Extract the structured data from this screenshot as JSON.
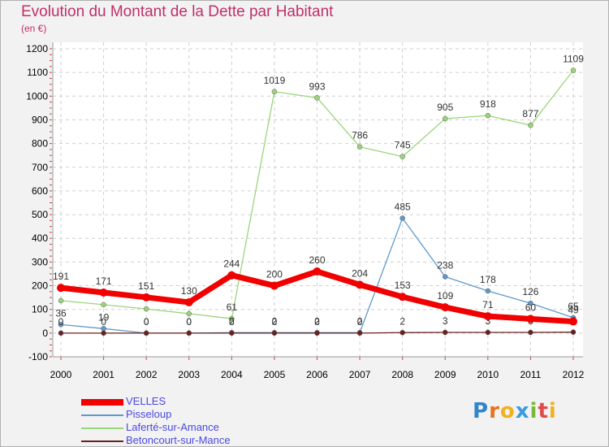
{
  "header": {
    "title": "Evolution du Montant de la Dette par Habitant",
    "subtitle": "(en €)"
  },
  "logo": {
    "text": "Proxiti",
    "letters": [
      "P",
      "r",
      "o",
      "x",
      "i",
      "t",
      "i"
    ],
    "colors": [
      "#2f86c9",
      "#e8731f",
      "#f0b020",
      "#3a9be0",
      "#7ab83b",
      "#e04a4a",
      "#f0b020"
    ]
  },
  "chart_data": {
    "type": "line",
    "x": [
      "2000",
      "2001",
      "2002",
      "2003",
      "2004",
      "2005",
      "2006",
      "2007",
      "2008",
      "2009",
      "2010",
      "2011",
      "2012"
    ],
    "ylim": [
      -100,
      1200
    ],
    "yticks": [
      -100,
      0,
      100,
      200,
      300,
      400,
      500,
      600,
      700,
      800,
      900,
      1000,
      1100,
      1200
    ],
    "grid": true,
    "legend_position": "bottom-left",
    "series": [
      {
        "name": "Laferté-sur-Amance",
        "color": "#99d67a",
        "values": [
          137,
          120,
          102,
          82,
          61,
          1019,
          993,
          786,
          745,
          905,
          918,
          877,
          1109
        ],
        "labels": [
          "",
          "",
          "",
          "",
          "61",
          "1019",
          "993",
          "786",
          "745",
          "905",
          "918",
          "877",
          "1109"
        ]
      },
      {
        "name": "Pisseloup",
        "color": "#5f9acd",
        "values": [
          36,
          19,
          0,
          0,
          2,
          2,
          2,
          2,
          485,
          238,
          178,
          126,
          65
        ],
        "labels": [
          "36",
          "19",
          "0",
          "0",
          "2",
          "2",
          "2",
          "2",
          "485",
          "238",
          "178",
          "126",
          "65"
        ]
      },
      {
        "name": "Betoncourt-sur-Mance",
        "color": "#6b2020",
        "values": [
          0,
          0,
          0,
          0,
          0,
          0,
          0,
          0,
          2,
          3,
          3,
          3,
          4
        ],
        "labels": [
          "0",
          "0",
          "0",
          "0",
          "0",
          "0",
          "0",
          "0",
          "2",
          "3",
          "3",
          "3",
          "4"
        ]
      },
      {
        "name": "VELLES",
        "color": "#f00000",
        "values": [
          191,
          171,
          151,
          130,
          244,
          200,
          260,
          204,
          153,
          109,
          71,
          60,
          49
        ],
        "labels": [
          "191",
          "171",
          "151",
          "130",
          "244",
          "200",
          "260",
          "204",
          "153",
          "109",
          "71",
          "60",
          "49"
        ]
      }
    ],
    "legend": [
      "VELLES",
      "Pisseloup",
      "Laferté-sur-Amance",
      "Betoncourt-sur-Mance"
    ]
  }
}
